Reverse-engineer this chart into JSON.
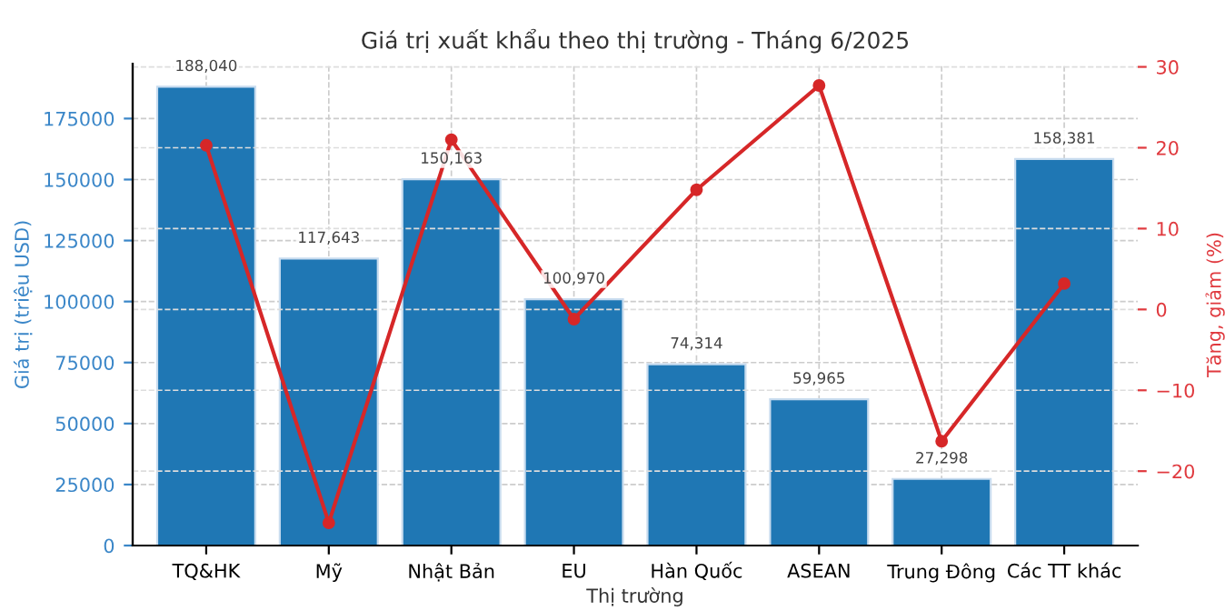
{
  "chart_data": {
    "type": "bar",
    "title": "Giá trị xuất khẩu theo thị trường - Tháng 6/2025",
    "xlabel": "Thị trường",
    "ylabel": "Giá trị (triệu USD)",
    "y2label": "Tăng, giảm (%)",
    "categories": [
      "TQ&HK",
      "Mỹ",
      "Nhật Bản",
      "EU",
      "Hàn Quốc",
      "ASEAN",
      "Trung Đông",
      "Các TT khác"
    ],
    "series": [
      {
        "color": "#1f77b4",
        "values": [
          188040,
          117643,
          150163,
          100970,
          74314,
          59965,
          27298,
          158381
        ],
        "value_labels": [
          "188,040",
          "117,643",
          "150,163",
          "100,970",
          "74,314",
          "59,965",
          "27,298",
          "158,381"
        ]
      },
      {
        "type": "line",
        "axis": "y2",
        "color": "#d62728",
        "marker": "circle",
        "line_style": "solid",
        "values": [
          20.3,
          -26.4,
          21.0,
          -1.2,
          14.8,
          27.7,
          -16.3,
          3.2
        ]
      }
    ],
    "ylim": [
      0,
      197500
    ],
    "yticks": [
      0,
      25000,
      50000,
      75000,
      100000,
      125000,
      150000,
      175000
    ],
    "y2lim": [
      -29.2,
      30.4
    ],
    "y2ticks": [
      {
        "value": -20,
        "label": "−20"
      },
      {
        "value": -10,
        "label": "−10"
      },
      0,
      10,
      20,
      30
    ],
    "grid": true
  }
}
